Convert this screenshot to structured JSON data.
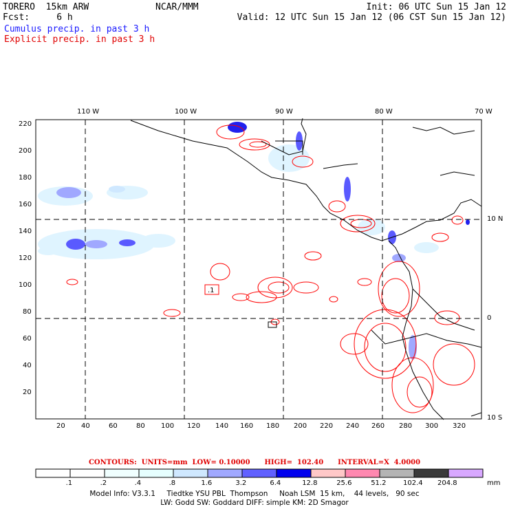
{
  "header": {
    "model": "TORERO  15km ARW",
    "org": "NCAR/MMM",
    "init": "Init: 06 UTC Sun 15 Jan 12",
    "fcst": "Fcst:     6 h",
    "valid": "Valid: 12 UTC Sun 15 Jan 12 (06 CST Sun 15 Jan 12)",
    "field1": "Cumulus precip. in past 3 h",
    "field2": "Explicit precip. in past 3 h"
  },
  "map": {
    "lon_labels": [
      "110 W",
      "100 W",
      "90 W",
      "80 W",
      "70 W"
    ],
    "lat_labels": [
      "10 N",
      "0",
      "10 S"
    ],
    "y_ticks": [
      "220",
      "200",
      "180",
      "160",
      "140",
      "120",
      "100",
      "80",
      "60",
      "40",
      "20"
    ],
    "x_ticks": [
      "20",
      "40",
      "60",
      "80",
      "100",
      "120",
      "140",
      "160",
      "180",
      "200",
      "220",
      "240",
      "260",
      "280",
      "300",
      "320"
    ],
    "annotation": ".1"
  },
  "contour_info": "CONTOURS:  UNITS=mm  LOW= 0.10000      HIGH=  102.40      INTERVAL=X  4.0000",
  "colorbar": {
    "labels": [
      ".1",
      ".2",
      ".4",
      ".8",
      "1.6",
      "3.2",
      "6.4",
      "12.8",
      "25.6",
      "51.2",
      "102.4",
      "204.8"
    ],
    "unit": "mm",
    "colors": [
      "#ffffff",
      "#ffffff",
      "#f0ffff",
      "#e6ffff",
      "#cfe8ff",
      "#a0a8ff",
      "#6060ff",
      "#0000ee",
      "#ffc8c8",
      "#ff88b0",
      "#b4b4b4",
      "#3a3a3a",
      "#d8a8ff"
    ]
  },
  "footer": {
    "line1": "Model Info: V3.3.1     Tiedtke YSU PBL  Thompson     Noah LSM  15 km,    44 levels,   90 sec",
    "line2": "LW: Godd SW: Goddard DIFF: simple KM: 2D Smagor"
  },
  "colors": {
    "cumulus": "#3c3cff",
    "explicit": "#ff0000",
    "light_precip": "#dff4ff"
  }
}
